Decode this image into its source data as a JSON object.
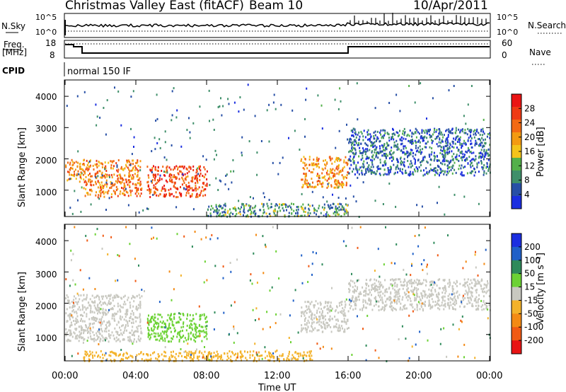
{
  "header": {
    "title": "Christmas Valley East (fitACF)",
    "beam": "Beam 10",
    "date": "10/Apr/2011"
  },
  "noise_panel": {
    "left_label": "N.Sky",
    "right_label": "N.Search",
    "left_ticks": [
      "10^5",
      "10^0"
    ],
    "right_ticks": [
      "10^5",
      "10^0"
    ]
  },
  "freq_panel": {
    "left_label_line1": "Freq.",
    "left_label_line2": "[MHz]",
    "left_ticks": [
      "18",
      "8"
    ],
    "right_label": "Nave",
    "right_ticks": [
      "60",
      "0"
    ]
  },
  "cpid_panel": {
    "label": "CPID",
    "value": "normal 150 IF"
  },
  "x_axis": {
    "label": "Time UT",
    "ticks": [
      "00:00",
      "04:00",
      "08:00",
      "12:00",
      "16:00",
      "20:00",
      "00:00"
    ]
  },
  "y_axis": {
    "label": "Slant Range [km]",
    "ticks": [
      "1000",
      "2000",
      "3000",
      "4000"
    ]
  },
  "power_colorbar": {
    "label": "Power [dB]",
    "ticks": [
      "4",
      "8",
      "12",
      "16",
      "20",
      "24",
      "28"
    ],
    "colors": [
      "#1b2ee0",
      "#274fa6",
      "#3f8f6a",
      "#53b04a",
      "#f3c31a",
      "#f39a12",
      "#f26a14",
      "#ef3a14",
      "#ea1414"
    ]
  },
  "velocity_colorbar": {
    "label": "Velocity [m s⁻¹]",
    "ticks": [
      "200",
      "100",
      "50",
      "15",
      "-15",
      "-50",
      "-100",
      "-200"
    ],
    "colors": [
      "#1b2ee0",
      "#2060c8",
      "#2e8a5a",
      "#6cd234",
      "#c8c8c0",
      "#f3b22a",
      "#f38a14",
      "#f05a14",
      "#e81414"
    ]
  },
  "chart_data": [
    {
      "type": "heatmap",
      "title": "Power [dB]",
      "xlabel": "Time UT",
      "ylabel": "Slant Range [km]",
      "xlim": [
        0,
        24
      ],
      "ylim": [
        180,
        4500
      ],
      "scatter_regions": [
        {
          "t0": 0.0,
          "t1": 1.0,
          "r0": 1300,
          "r1": 2000,
          "value_db": 20
        },
        {
          "t0": 1.0,
          "t1": 4.3,
          "r0": 800,
          "r1": 2000,
          "value_db": 22
        },
        {
          "t0": 4.6,
          "t1": 8.0,
          "r0": 800,
          "r1": 1800,
          "value_db": 26
        },
        {
          "t0": 13.3,
          "t1": 16.0,
          "r0": 1100,
          "r1": 2100,
          "value_db": 20
        },
        {
          "t0": 16.0,
          "t1": 24.0,
          "r0": 1500,
          "r1": 3000,
          "value_db": 6
        },
        {
          "t0": 8.0,
          "t1": 16.0,
          "r0": 180,
          "r1": 600,
          "value_db": 10
        }
      ]
    },
    {
      "type": "heatmap",
      "title": "Velocity [m s⁻¹]",
      "xlabel": "Time UT",
      "ylabel": "Slant Range [km]",
      "xlim": [
        0,
        24
      ],
      "ylim": [
        180,
        4500
      ],
      "scatter_regions": [
        {
          "t0": 0.0,
          "t1": 4.3,
          "r0": 800,
          "r1": 2300,
          "velocity": 0
        },
        {
          "t0": 4.6,
          "t1": 8.0,
          "r0": 800,
          "r1": 1700,
          "velocity": 30
        },
        {
          "t0": 13.3,
          "t1": 16.0,
          "r0": 1100,
          "r1": 2100,
          "velocity": 0
        },
        {
          "t0": 16.0,
          "t1": 24.0,
          "r0": 1800,
          "r1": 2800,
          "velocity": 0
        },
        {
          "t0": 1.0,
          "t1": 14.0,
          "r0": 180,
          "r1": 500,
          "velocity": -30
        }
      ]
    }
  ]
}
